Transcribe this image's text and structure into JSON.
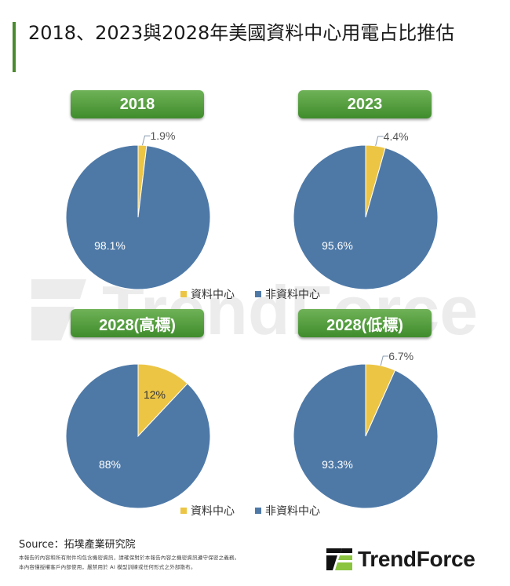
{
  "header": {
    "title": "2018、2023與2028年美國資料中心用電占比推估",
    "accent_color": "#4a8a2e"
  },
  "legend": {
    "items": [
      {
        "label": "資料中心",
        "color": "#ecc545"
      },
      {
        "label": "非資料中心",
        "color": "#4e79a7"
      }
    ]
  },
  "chart_data": [
    {
      "type": "pie",
      "title": "2018",
      "categories": [
        "資料中心",
        "非資料中心"
      ],
      "values": [
        1.9,
        98.1
      ],
      "labels": [
        "1.9%",
        "98.1%"
      ],
      "colors": [
        "#ecc545",
        "#4e79a7"
      ]
    },
    {
      "type": "pie",
      "title": "2023",
      "categories": [
        "資料中心",
        "非資料中心"
      ],
      "values": [
        4.4,
        95.6
      ],
      "labels": [
        "4.4%",
        "95.6%"
      ],
      "colors": [
        "#ecc545",
        "#4e79a7"
      ]
    },
    {
      "type": "pie",
      "title": "2028(高標)",
      "categories": [
        "資料中心",
        "非資料中心"
      ],
      "values": [
        12,
        88
      ],
      "labels": [
        "12%",
        "88%"
      ],
      "colors": [
        "#ecc545",
        "#4e79a7"
      ]
    },
    {
      "type": "pie",
      "title": "2028(低標)",
      "categories": [
        "資料中心",
        "非資料中心"
      ],
      "values": [
        6.7,
        93.3
      ],
      "labels": [
        "6.7%",
        "93.3%"
      ],
      "colors": [
        "#ecc545",
        "#4e79a7"
      ]
    }
  ],
  "footer": {
    "source": "Source：拓墣產業研究院",
    "note_line1": "本報告的內容和所有附件均包含機密資訊，請確保對於本報告內容之機密資訊遵守保密之義務。",
    "note_line2": "本內容僅授權客戶內部使用，嚴禁用於 AI 模型訓練或任何形式之外部散布。",
    "logo_text": "TrendForce"
  },
  "watermark": {
    "text": "TrendForce"
  }
}
